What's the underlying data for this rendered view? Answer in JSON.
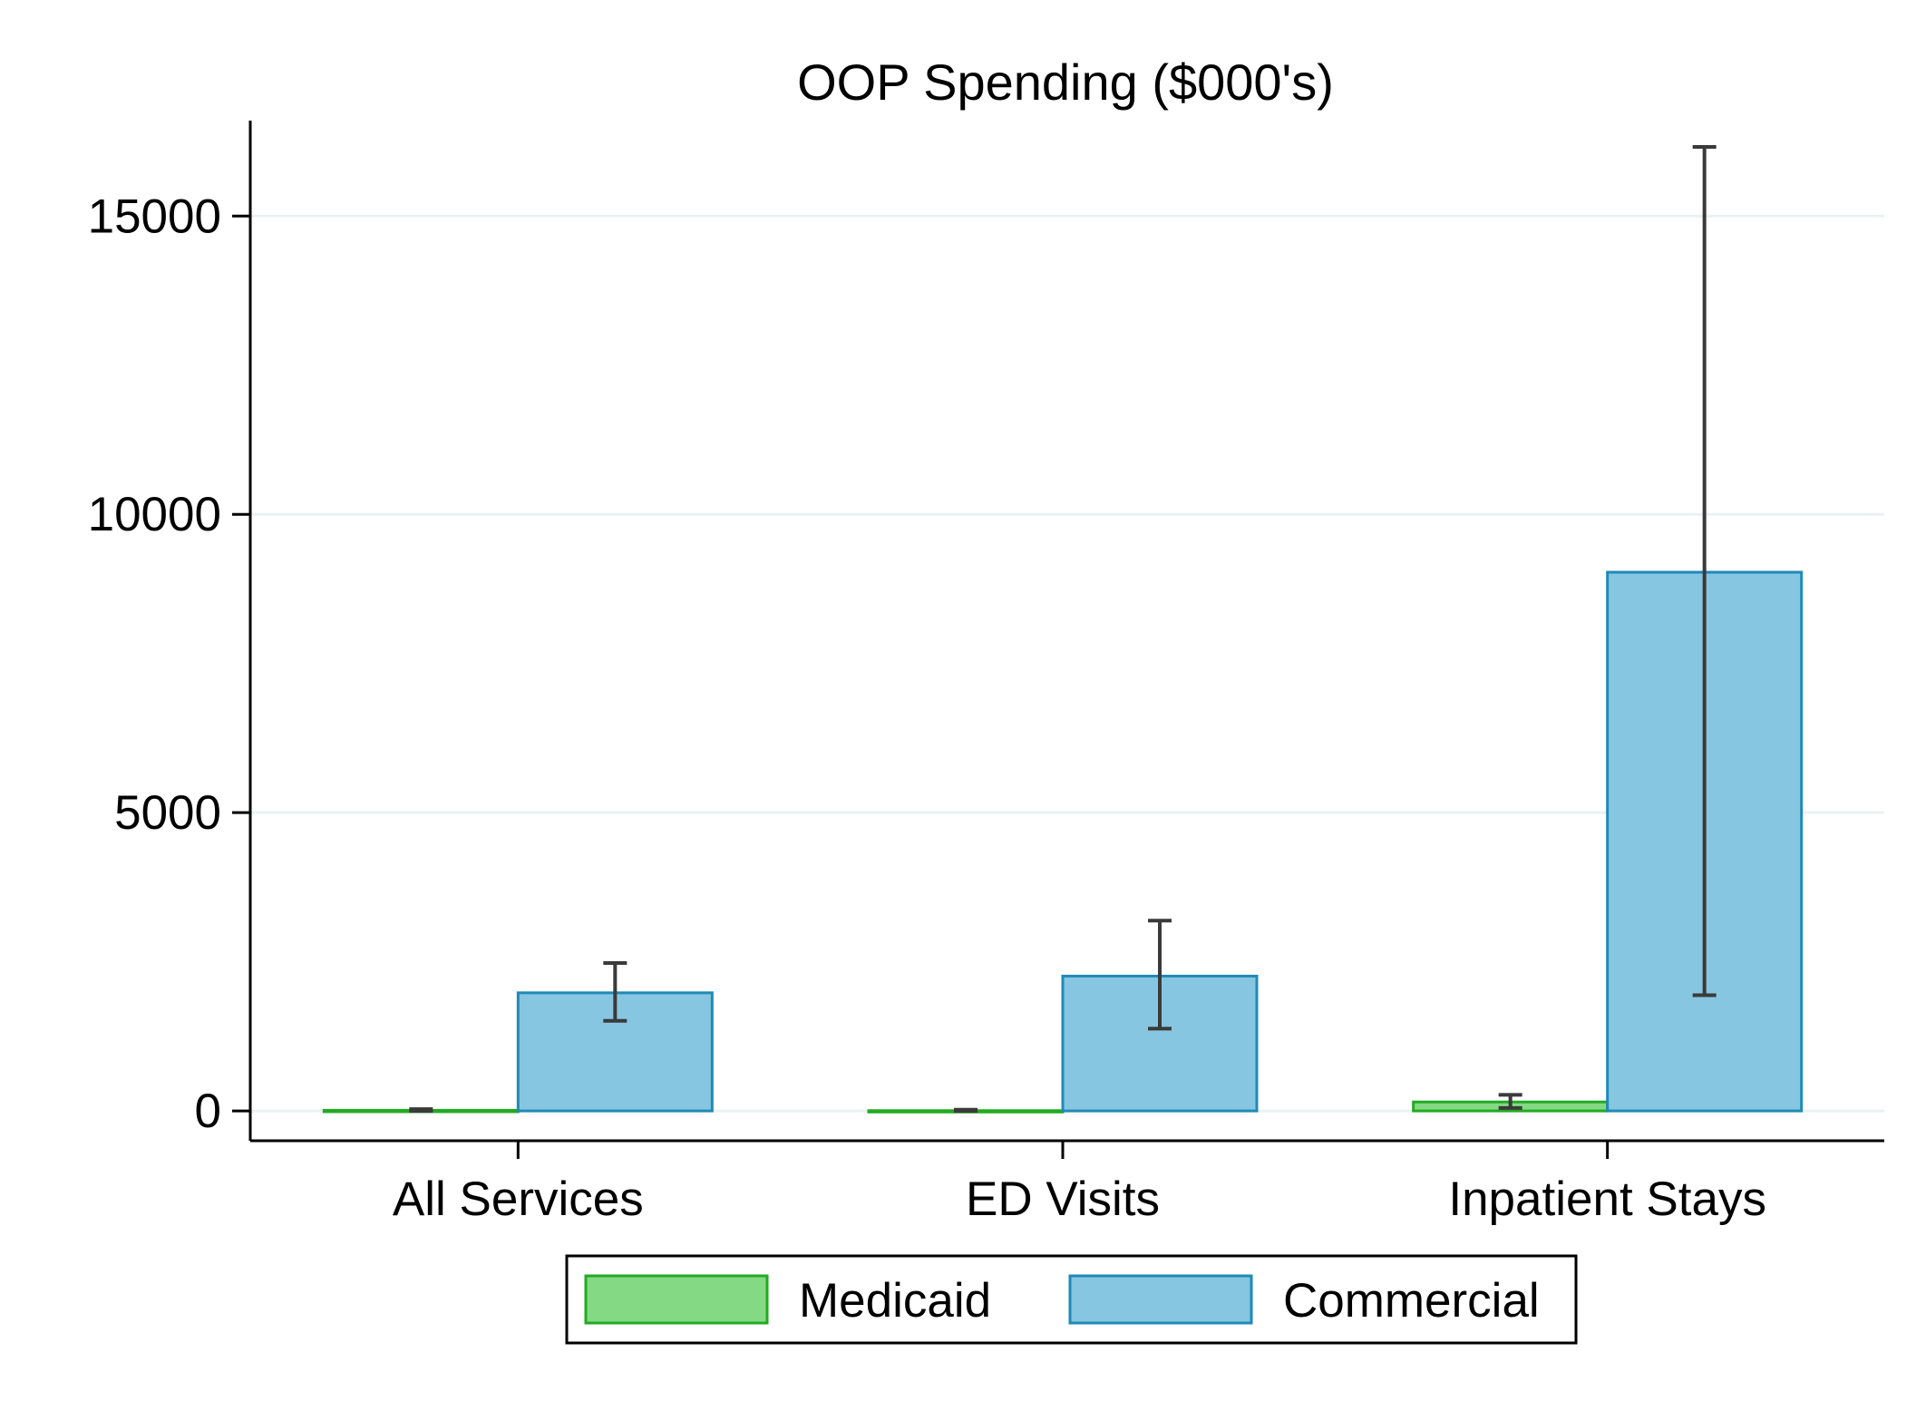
{
  "chart_data": {
    "type": "bar",
    "title": "OOP Spending ($000's)",
    "xlabel": "",
    "ylabel": "",
    "categories": [
      "All Services",
      "ED Visits",
      "Inpatient Stays"
    ],
    "series": [
      {
        "name": "Medicaid",
        "values": [
          10,
          5,
          150
        ],
        "ci_low": [
          0,
          0,
          50
        ],
        "ci_high": [
          30,
          20,
          270
        ],
        "fill": "#84D984",
        "stroke": "#22AA22"
      },
      {
        "name": "Commercial",
        "values": [
          1980,
          2260,
          9030
        ],
        "ci_low": [
          1510,
          1380,
          1940
        ],
        "ci_high": [
          2480,
          3190,
          16160
        ],
        "fill": "#87C6E0",
        "stroke": "#1F8AB8"
      }
    ],
    "yticks": [
      0,
      5000,
      10000,
      15000
    ],
    "ylim": [
      -500,
      16600
    ],
    "grid": true,
    "grid_color": "#EAF2F3",
    "errorbar_color": "#3A3A3A",
    "legend_position": "bottom"
  }
}
